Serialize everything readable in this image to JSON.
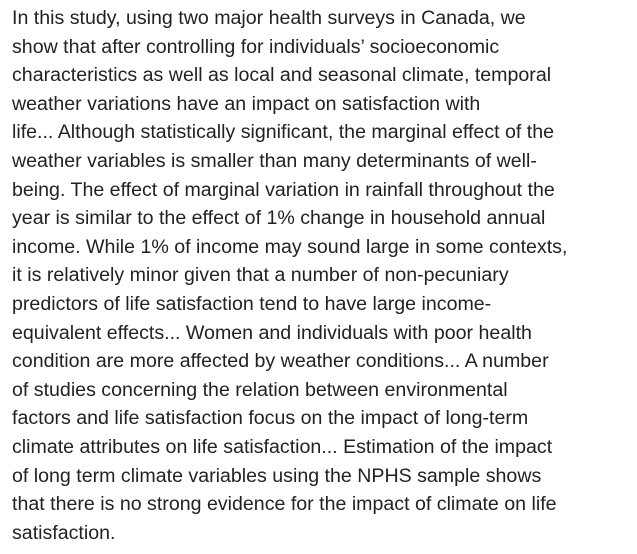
{
  "passage": {
    "lines": [
      "In this study, using two major health surveys in Canada, we",
      "show that after controlling for individuals’ socioeconomic",
      "characteristics as well as local and seasonal climate, temporal",
      "weather variations have an impact on satisfaction with",
      "life... Although statistically significant, the marginal effect of the",
      "weather variables is smaller than many determinants of well-",
      "being. The effect of marginal variation in rainfall throughout the",
      "year is similar to the effect of 1% change in household annual",
      "income. While 1% of income may sound large in some contexts,",
      "it is relatively minor given that a number of non-pecuniary",
      "predictors of life satisfaction tend to have large income-",
      "equivalent effects... Women and individuals with poor health",
      "condition are more affected by weather conditions... A number",
      "of studies concerning the relation between environmental",
      "factors and life satisfaction focus on the impact of long-term",
      "climate attributes on life satisfaction... Estimation of the impact",
      "of long term climate variables using the NPHS sample shows",
      "that there is no strong evidence for the impact of climate on life",
      "satisfaction."
    ],
    "text_color": "#222222",
    "background_color": "#ffffff"
  }
}
